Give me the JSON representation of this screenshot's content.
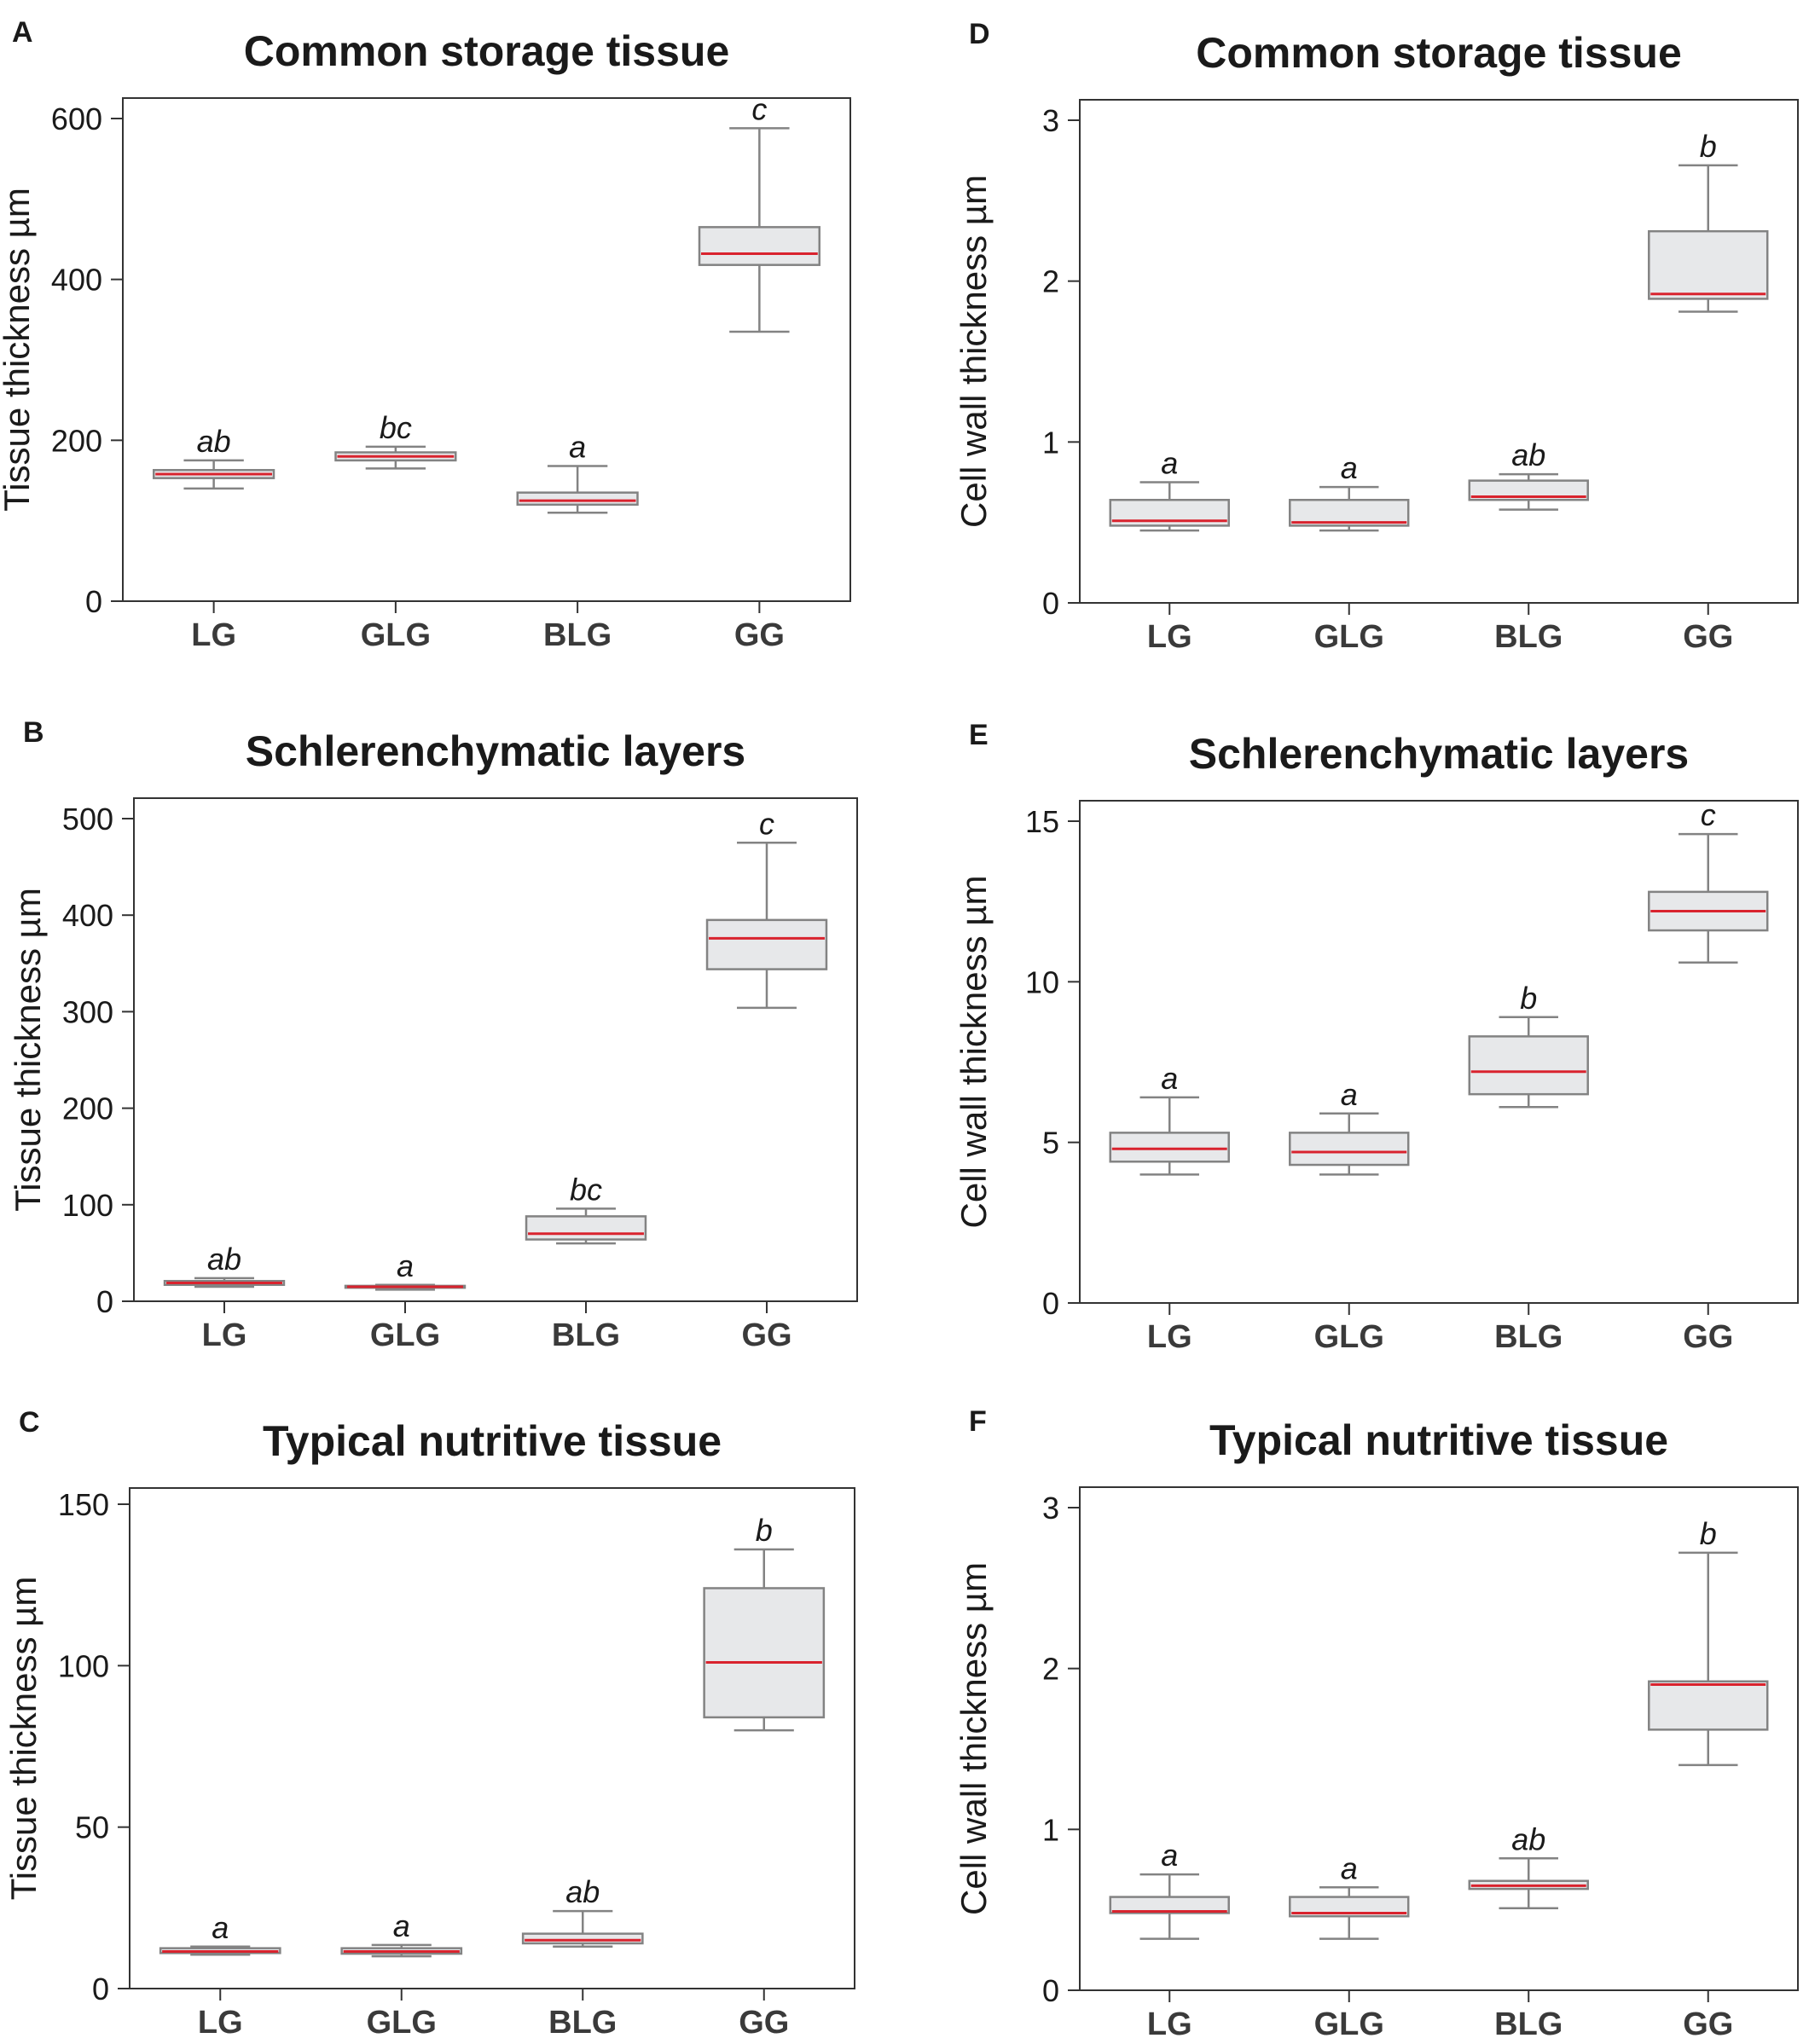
{
  "colors": {
    "box_fill": "#e7e8ea",
    "box_stroke": "#838383",
    "median": "#d9232e",
    "axis": "#333333",
    "text": "#1a1a1a"
  },
  "chart_data": [
    {
      "panel": "A",
      "type": "box",
      "title": "Common storage tissue",
      "ylabel": "Tissue thickness µm",
      "ylim": [
        0,
        600
      ],
      "yticks": [
        0,
        200,
        400,
        600
      ],
      "categories": [
        "LG",
        "GLG",
        "BLG",
        "GG"
      ],
      "boxes": [
        {
          "min": 140,
          "q1": 153,
          "median": 158,
          "q3": 163,
          "max": 175,
          "letter": "ab"
        },
        {
          "min": 165,
          "q1": 175,
          "median": 180,
          "q3": 185,
          "max": 192,
          "letter": "bc"
        },
        {
          "min": 110,
          "q1": 120,
          "median": 125,
          "q3": 135,
          "max": 168,
          "letter": "a"
        },
        {
          "min": 335,
          "q1": 418,
          "median": 432,
          "q3": 465,
          "max": 588,
          "letter": "c"
        }
      ]
    },
    {
      "panel": "B",
      "type": "box",
      "title": "Schlerenchymatic layers",
      "ylabel": "Tissue thickness µm",
      "ylim": [
        0,
        500
      ],
      "yticks": [
        0,
        100,
        200,
        300,
        400,
        500
      ],
      "categories": [
        "LG",
        "GLG",
        "BLG",
        "GG"
      ],
      "boxes": [
        {
          "min": 15,
          "q1": 17,
          "median": 19,
          "q3": 21,
          "max": 24,
          "letter": "ab"
        },
        {
          "min": 12,
          "q1": 14,
          "median": 15,
          "q3": 16,
          "max": 17,
          "letter": "a"
        },
        {
          "min": 60,
          "q1": 64,
          "median": 70,
          "q3": 88,
          "max": 96,
          "letter": "bc"
        },
        {
          "min": 304,
          "q1": 344,
          "median": 376,
          "q3": 395,
          "max": 475,
          "letter": "c"
        }
      ]
    },
    {
      "panel": "C",
      "type": "box",
      "title": "Typical nutritive tissue",
      "ylabel": "Tissue thickness µm",
      "ylim": [
        0,
        150
      ],
      "yticks": [
        0,
        50,
        100,
        150
      ],
      "categories": [
        "LG",
        "GLG",
        "BLG",
        "GG"
      ],
      "boxes": [
        {
          "min": 10.5,
          "q1": 11,
          "median": 11.5,
          "q3": 12.5,
          "max": 13,
          "letter": "a"
        },
        {
          "min": 10,
          "q1": 10.8,
          "median": 11.5,
          "q3": 12.5,
          "max": 13.5,
          "letter": "a"
        },
        {
          "min": 13,
          "q1": 14,
          "median": 15,
          "q3": 17,
          "max": 24,
          "letter": "ab"
        },
        {
          "min": 80,
          "q1": 84,
          "median": 101,
          "q3": 124,
          "max": 136,
          "letter": "b"
        }
      ]
    },
    {
      "panel": "D",
      "type": "box",
      "title": "Common storage tissue",
      "ylabel": "Cell wall thickness µm",
      "ylim": [
        0,
        3
      ],
      "yticks": [
        0,
        1,
        2,
        3
      ],
      "categories": [
        "LG",
        "GLG",
        "BLG",
        "GG"
      ],
      "boxes": [
        {
          "min": 0.45,
          "q1": 0.48,
          "median": 0.51,
          "q3": 0.64,
          "max": 0.75,
          "letter": "a"
        },
        {
          "min": 0.45,
          "q1": 0.48,
          "median": 0.5,
          "q3": 0.64,
          "max": 0.72,
          "letter": "a"
        },
        {
          "min": 0.58,
          "q1": 0.64,
          "median": 0.66,
          "q3": 0.76,
          "max": 0.8,
          "letter": "ab"
        },
        {
          "min": 1.81,
          "q1": 1.89,
          "median": 1.92,
          "q3": 2.31,
          "max": 2.72,
          "letter": "b"
        }
      ]
    },
    {
      "panel": "E",
      "type": "box",
      "title": "Schlerenchymatic layers",
      "ylabel": "Cell wall thickness µm",
      "ylim": [
        0,
        15
      ],
      "yticks": [
        0,
        5,
        10,
        15
      ],
      "categories": [
        "LG",
        "GLG",
        "BLG",
        "GG"
      ],
      "boxes": [
        {
          "min": 4,
          "q1": 4.4,
          "median": 4.8,
          "q3": 5.3,
          "max": 6.4,
          "letter": "a"
        },
        {
          "min": 4,
          "q1": 4.3,
          "median": 4.7,
          "q3": 5.3,
          "max": 5.9,
          "letter": "a"
        },
        {
          "min": 6.1,
          "q1": 6.5,
          "median": 7.2,
          "q3": 8.3,
          "max": 8.9,
          "letter": "b"
        },
        {
          "min": 10.6,
          "q1": 11.6,
          "median": 12.2,
          "q3": 12.8,
          "max": 14.6,
          "letter": "c"
        }
      ]
    },
    {
      "panel": "F",
      "type": "box",
      "title": "Typical nutritive tissue",
      "ylabel": "Cell wall thickness µm",
      "ylim": [
        0,
        3
      ],
      "yticks": [
        0,
        1,
        2,
        3
      ],
      "categories": [
        "LG",
        "GLG",
        "BLG",
        "GG"
      ],
      "boxes": [
        {
          "min": 0.32,
          "q1": 0.48,
          "median": 0.49,
          "q3": 0.58,
          "max": 0.72,
          "letter": "a"
        },
        {
          "min": 0.32,
          "q1": 0.46,
          "median": 0.48,
          "q3": 0.58,
          "max": 0.64,
          "letter": "a"
        },
        {
          "min": 0.51,
          "q1": 0.63,
          "median": 0.65,
          "q3": 0.68,
          "max": 0.82,
          "letter": "ab"
        },
        {
          "min": 1.4,
          "q1": 1.62,
          "median": 1.9,
          "q3": 1.92,
          "max": 2.72,
          "letter": "b"
        }
      ]
    }
  ]
}
